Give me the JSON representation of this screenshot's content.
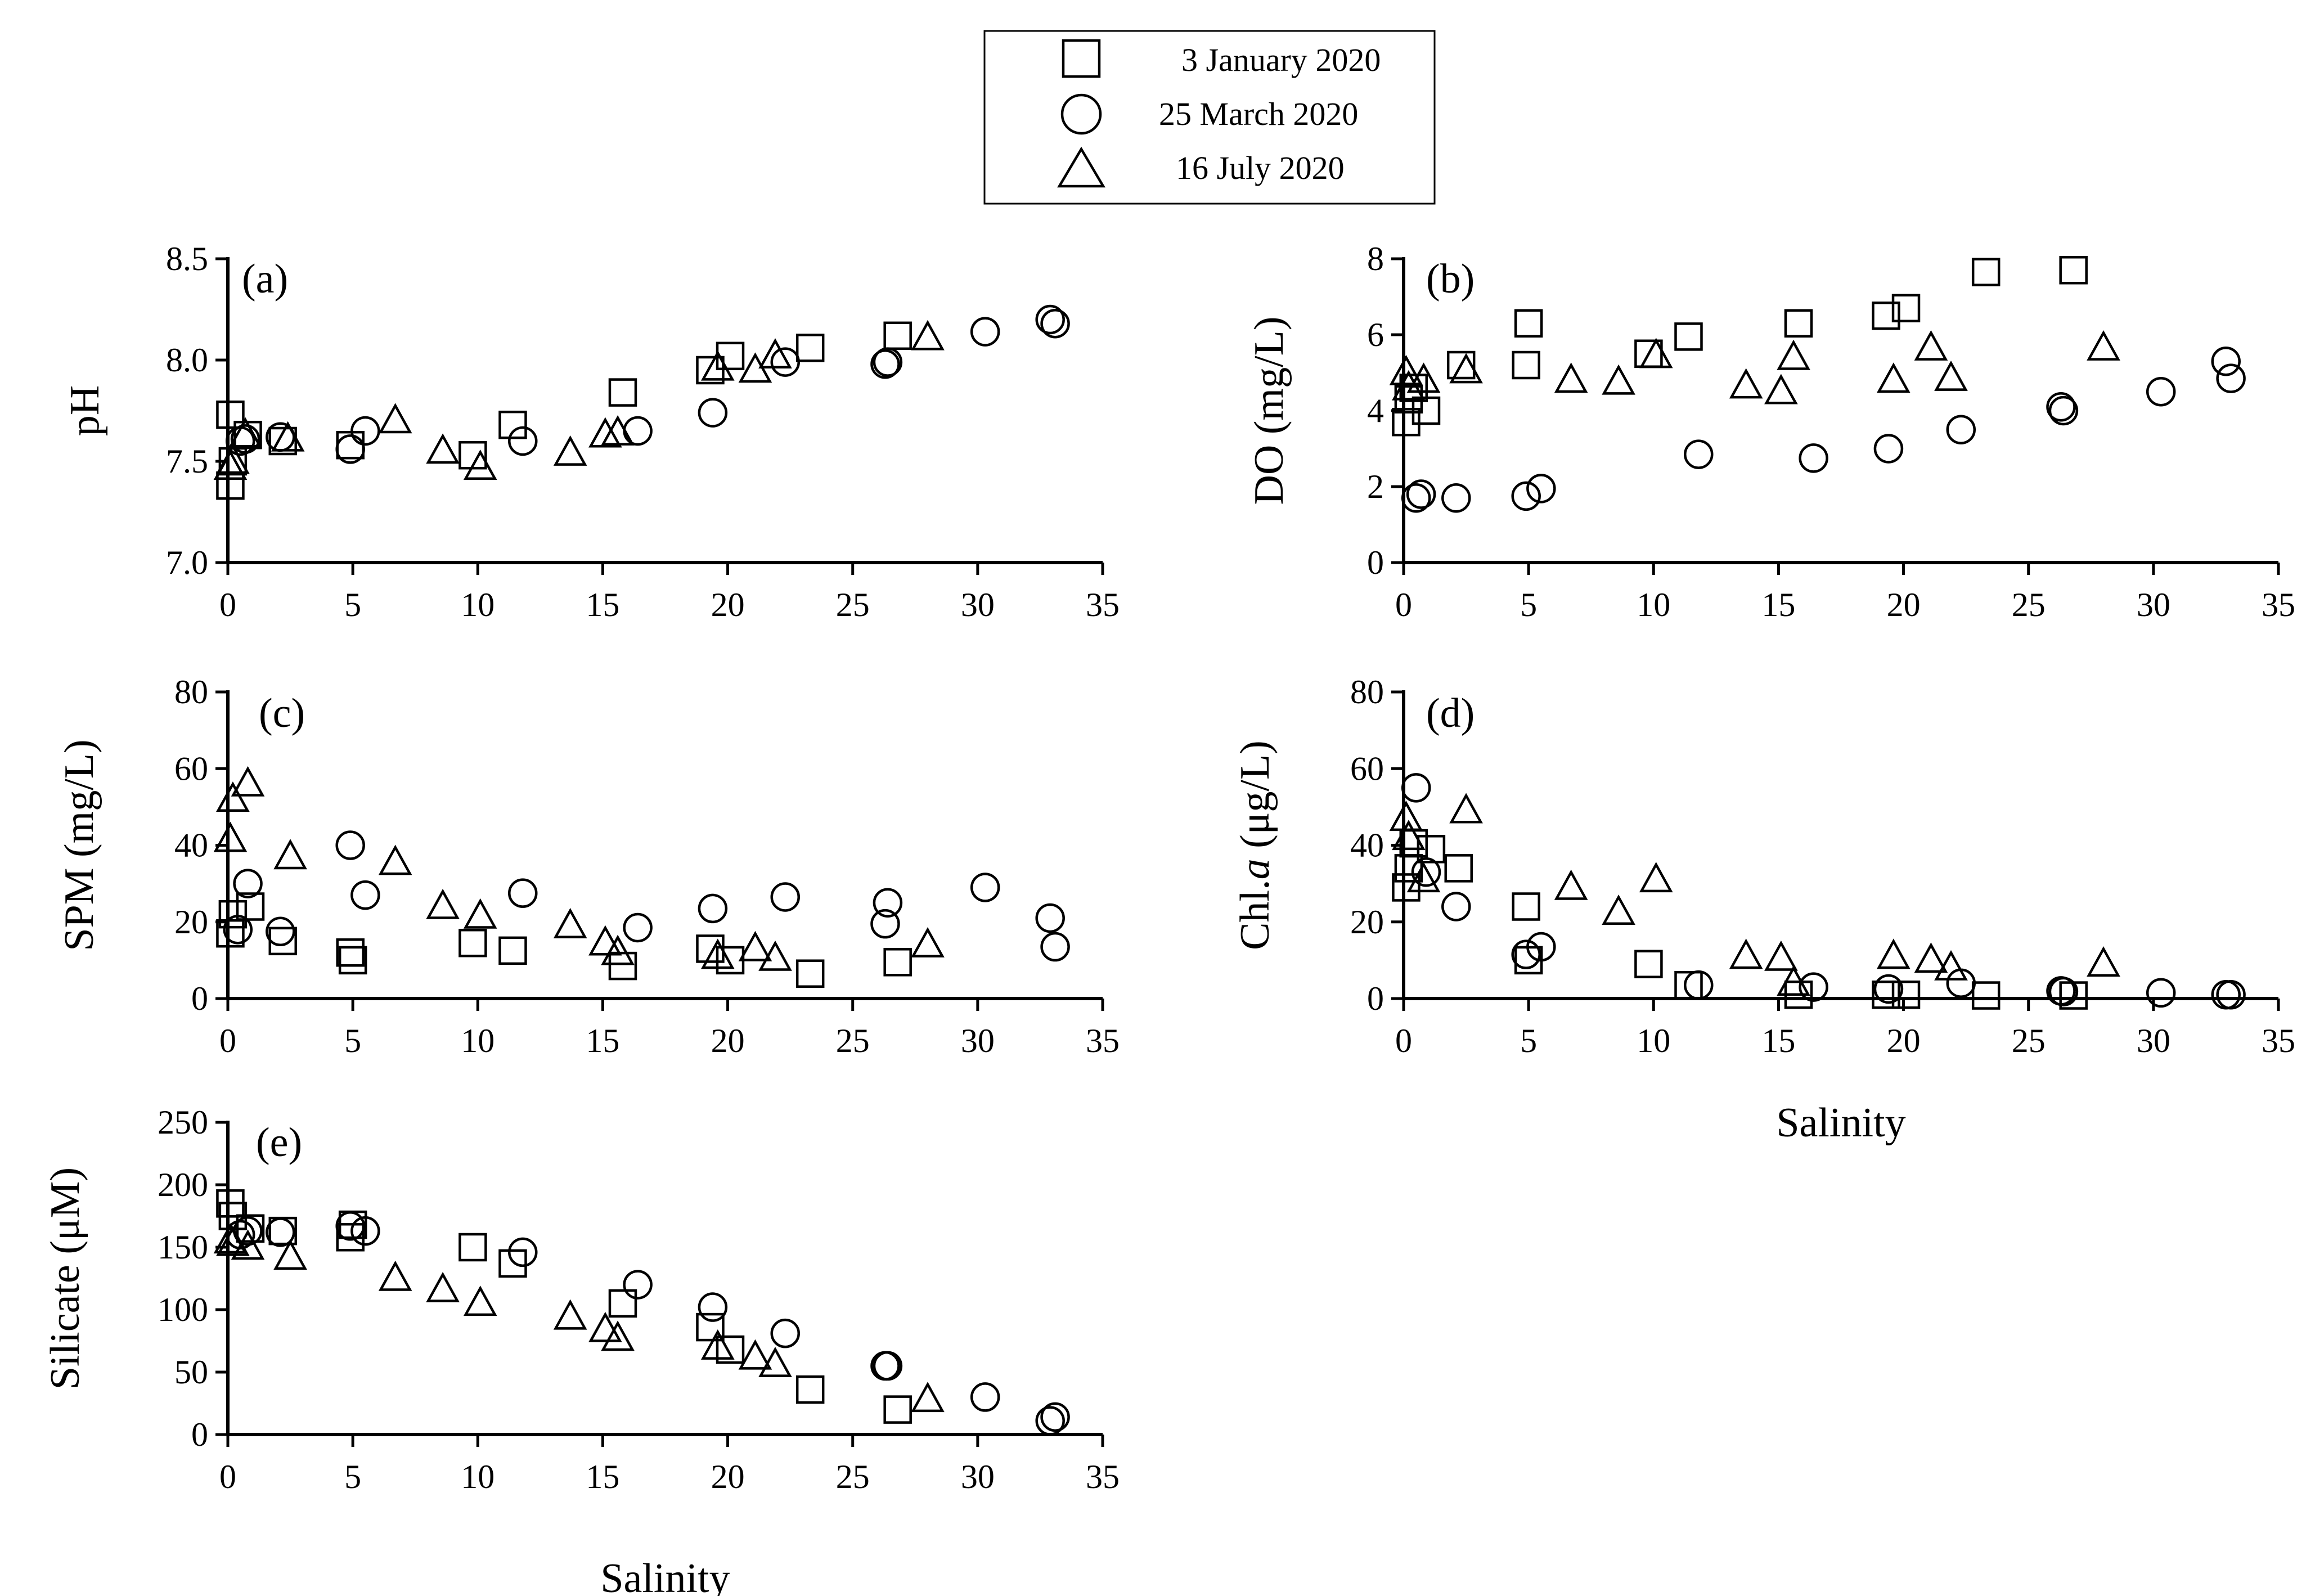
{
  "legend": {
    "entries": [
      {
        "label": "3 January 2020",
        "marker": "square"
      },
      {
        "label": "25 March 2020",
        "marker": "circle"
      },
      {
        "label": "16 July 2020",
        "marker": "triangle"
      }
    ]
  },
  "colors": {
    "ink": "#000000",
    "background": "#ffffff"
  },
  "chart_data": [
    {
      "type": "scatter",
      "id": "a",
      "tag": "(a)",
      "ylabel": "pH",
      "xlabel": "",
      "xlim": [
        0,
        35
      ],
      "ylim": [
        7.0,
        8.5
      ],
      "xticks": [
        0,
        5,
        10,
        15,
        20,
        25,
        30,
        35
      ],
      "yticks": [
        7.0,
        7.5,
        8.0,
        8.5
      ],
      "ytick_labels": [
        "7.0",
        "7.5",
        "8.0",
        "8.5"
      ],
      "series": [
        {
          "name": "3 January 2020",
          "marker": "square",
          "points": [
            [
              0.1,
              7.73
            ],
            [
              0.1,
              7.38
            ],
            [
              0.2,
              7.5
            ],
            [
              0.8,
              7.63
            ],
            [
              2.2,
              7.6
            ],
            [
              4.9,
              7.58
            ],
            [
              9.8,
              7.53
            ],
            [
              11.4,
              7.68
            ],
            [
              15.8,
              7.84
            ],
            [
              19.3,
              7.95
            ],
            [
              20.1,
              8.02
            ],
            [
              23.3,
              8.06
            ],
            [
              26.8,
              8.12
            ]
          ]
        },
        {
          "name": "25 March 2020",
          "marker": "circle",
          "points": [
            [
              0.5,
              7.6
            ],
            [
              0.7,
              7.61
            ],
            [
              2.1,
              7.62
            ],
            [
              4.9,
              7.56
            ],
            [
              5.5,
              7.65
            ],
            [
              11.8,
              7.6
            ],
            [
              16.4,
              7.65
            ],
            [
              19.4,
              7.74
            ],
            [
              22.3,
              7.99
            ],
            [
              26.3,
              7.98
            ],
            [
              26.4,
              7.99
            ],
            [
              30.3,
              8.14
            ],
            [
              32.9,
              8.2
            ],
            [
              33.1,
              8.18
            ]
          ]
        },
        {
          "name": "16 July 2020",
          "marker": "triangle",
          "points": [
            [
              0.1,
              7.47
            ],
            [
              0.2,
              7.5
            ],
            [
              0.7,
              7.63
            ],
            [
              2.4,
              7.61
            ],
            [
              6.7,
              7.7
            ],
            [
              8.6,
              7.55
            ],
            [
              10.1,
              7.47
            ],
            [
              13.7,
              7.54
            ],
            [
              15.1,
              7.63
            ],
            [
              15.6,
              7.64
            ],
            [
              19.6,
              7.96
            ],
            [
              21.1,
              7.95
            ],
            [
              21.9,
              8.02
            ],
            [
              28.0,
              8.11
            ]
          ]
        }
      ]
    },
    {
      "type": "scatter",
      "id": "b",
      "tag": "(b)",
      "ylabel": "DO (mg/L)",
      "xlabel": "",
      "xlim": [
        0,
        35
      ],
      "ylim": [
        0,
        8
      ],
      "xticks": [
        0,
        5,
        10,
        15,
        20,
        25,
        30,
        35
      ],
      "yticks": [
        0,
        2,
        4,
        6,
        8
      ],
      "ytick_labels": [
        "0",
        "2",
        "4",
        "6",
        "8"
      ],
      "series": [
        {
          "name": "3 January 2020",
          "marker": "square",
          "points": [
            [
              0.1,
              3.7
            ],
            [
              0.2,
              4.3
            ],
            [
              0.4,
              4.6
            ],
            [
              0.9,
              4.0
            ],
            [
              2.3,
              5.2
            ],
            [
              4.9,
              5.2
            ],
            [
              5.0,
              6.3
            ],
            [
              9.8,
              5.5
            ],
            [
              11.4,
              5.95
            ],
            [
              15.8,
              6.3
            ],
            [
              19.3,
              6.5
            ],
            [
              20.1,
              6.7
            ],
            [
              23.3,
              7.65
            ],
            [
              26.8,
              7.7
            ]
          ]
        },
        {
          "name": "25 March 2020",
          "marker": "circle",
          "points": [
            [
              0.5,
              1.7
            ],
            [
              0.7,
              1.8
            ],
            [
              2.1,
              1.7
            ],
            [
              4.9,
              1.75
            ],
            [
              5.5,
              1.95
            ],
            [
              11.8,
              2.85
            ],
            [
              16.4,
              2.75
            ],
            [
              19.4,
              3.0
            ],
            [
              22.3,
              3.5
            ],
            [
              26.3,
              4.1
            ],
            [
              26.4,
              4.0
            ],
            [
              30.3,
              4.5
            ],
            [
              32.9,
              5.3
            ],
            [
              33.1,
              4.85
            ]
          ]
        },
        {
          "name": "16 July 2020",
          "marker": "triangle",
          "points": [
            [
              0.1,
              5.0
            ],
            [
              0.2,
              4.6
            ],
            [
              0.8,
              4.8
            ],
            [
              2.5,
              5.05
            ],
            [
              6.7,
              4.8
            ],
            [
              8.6,
              4.75
            ],
            [
              10.1,
              5.45
            ],
            [
              13.7,
              4.65
            ],
            [
              15.1,
              4.5
            ],
            [
              15.6,
              5.4
            ],
            [
              19.6,
              4.8
            ],
            [
              21.1,
              5.65
            ],
            [
              21.9,
              4.85
            ],
            [
              28.0,
              5.65
            ]
          ]
        }
      ]
    },
    {
      "type": "scatter",
      "id": "c",
      "tag": "(c)",
      "ylabel": "SPM (mg/L)",
      "xlabel": "",
      "xlim": [
        0,
        35
      ],
      "ylim": [
        0,
        80
      ],
      "xticks": [
        0,
        5,
        10,
        15,
        20,
        25,
        30,
        35
      ],
      "yticks": [
        0,
        20,
        40,
        60,
        80
      ],
      "ytick_labels": [
        "0",
        "20",
        "40",
        "60",
        "80"
      ],
      "series": [
        {
          "name": "3 January 2020",
          "marker": "square",
          "points": [
            [
              0.1,
              17
            ],
            [
              0.2,
              22
            ],
            [
              0.9,
              24
            ],
            [
              2.2,
              15
            ],
            [
              4.9,
              12
            ],
            [
              5.0,
              10
            ],
            [
              9.8,
              14.5
            ],
            [
              11.4,
              12.5
            ],
            [
              15.8,
              8.5
            ],
            [
              19.3,
              13
            ],
            [
              20.1,
              10
            ],
            [
              23.3,
              6.5
            ],
            [
              26.8,
              9.5
            ]
          ]
        },
        {
          "name": "25 March 2020",
          "marker": "circle",
          "points": [
            [
              0.4,
              18
            ],
            [
              0.8,
              30
            ],
            [
              2.1,
              17.5
            ],
            [
              4.9,
              40
            ],
            [
              5.5,
              27
            ],
            [
              11.8,
              27.5
            ],
            [
              16.4,
              18.5
            ],
            [
              19.4,
              23.5
            ],
            [
              22.3,
              26.5
            ],
            [
              26.3,
              19.5
            ],
            [
              26.4,
              25
            ],
            [
              30.3,
              29
            ],
            [
              32.9,
              21
            ],
            [
              33.1,
              13.5
            ]
          ]
        },
        {
          "name": "16 July 2020",
          "marker": "triangle",
          "points": [
            [
              0.1,
              41.5
            ],
            [
              0.2,
              52
            ],
            [
              0.8,
              56
            ],
            [
              2.5,
              37
            ],
            [
              6.7,
              35.5
            ],
            [
              8.6,
              24
            ],
            [
              10.1,
              21.5
            ],
            [
              13.7,
              19
            ],
            [
              15.1,
              14.5
            ],
            [
              15.6,
              12
            ],
            [
              19.6,
              11
            ],
            [
              21.1,
              13
            ],
            [
              21.9,
              10.5
            ],
            [
              28.0,
              14
            ]
          ]
        }
      ]
    },
    {
      "type": "scatter",
      "id": "d",
      "tag": "(d)",
      "ylabel": "Chl.a (μg/L)",
      "ylabel_prefix": "Chl.",
      "ylabel_italic": "a",
      "ylabel_suffix": " (μg/L)",
      "xlabel": "Salinity",
      "xlim": [
        0,
        35
      ],
      "ylim": [
        0,
        80
      ],
      "xticks": [
        0,
        5,
        10,
        15,
        20,
        25,
        30,
        35
      ],
      "yticks": [
        0,
        20,
        40,
        60,
        80
      ],
      "ytick_labels": [
        "0",
        "20",
        "40",
        "60",
        "80"
      ],
      "series": [
        {
          "name": "3 January 2020",
          "marker": "square",
          "points": [
            [
              0.1,
              29
            ],
            [
              0.2,
              34
            ],
            [
              0.4,
              40.5
            ],
            [
              1.1,
              39
            ],
            [
              2.2,
              34
            ],
            [
              4.9,
              24
            ],
            [
              5.0,
              10
            ],
            [
              9.8,
              9
            ],
            [
              11.4,
              3.5
            ],
            [
              15.8,
              1
            ],
            [
              19.3,
              1
            ],
            [
              20.1,
              1
            ],
            [
              23.3,
              0.8
            ],
            [
              26.8,
              0.8
            ]
          ]
        },
        {
          "name": "25 March 2020",
          "marker": "circle",
          "points": [
            [
              0.5,
              55
            ],
            [
              0.9,
              33
            ],
            [
              2.1,
              24
            ],
            [
              4.9,
              11.5
            ],
            [
              5.5,
              13.5
            ],
            [
              11.8,
              3.5
            ],
            [
              16.4,
              3
            ],
            [
              19.4,
              2.5
            ],
            [
              22.3,
              4
            ],
            [
              26.3,
              2
            ],
            [
              26.4,
              1.8
            ],
            [
              30.3,
              1.5
            ],
            [
              32.9,
              1
            ],
            [
              33.1,
              1
            ]
          ]
        },
        {
          "name": "16 July 2020",
          "marker": "triangle",
          "points": [
            [
              0.1,
              47
            ],
            [
              0.2,
              42
            ],
            [
              0.8,
              31
            ],
            [
              2.5,
              49
            ],
            [
              6.7,
              29
            ],
            [
              8.6,
              22.5
            ],
            [
              10.1,
              31
            ],
            [
              13.7,
              11
            ],
            [
              15.1,
              10.5
            ],
            [
              15.6,
              4
            ],
            [
              19.6,
              11
            ],
            [
              21.1,
              10
            ],
            [
              21.9,
              8
            ],
            [
              28.0,
              9
            ]
          ]
        }
      ]
    },
    {
      "type": "scatter",
      "id": "e",
      "tag": "(e)",
      "ylabel": "Silicate (μM)",
      "xlabel": "Salinity",
      "xlim": [
        0,
        35
      ],
      "ylim": [
        0,
        250
      ],
      "xticks": [
        0,
        5,
        10,
        15,
        20,
        25,
        30,
        35
      ],
      "yticks": [
        0,
        50,
        100,
        150,
        200,
        250
      ],
      "ytick_labels": [
        "0",
        "50",
        "100",
        "150",
        "200",
        "250"
      ],
      "series": [
        {
          "name": "3 January 2020",
          "marker": "square",
          "points": [
            [
              0.1,
              185
            ],
            [
              0.2,
              175
            ],
            [
              0.9,
              165
            ],
            [
              2.2,
              163
            ],
            [
              4.9,
              158
            ],
            [
              5.0,
              168
            ],
            [
              9.8,
              150
            ],
            [
              11.4,
              137
            ],
            [
              15.8,
              105
            ],
            [
              19.3,
              86
            ],
            [
              20.1,
              68
            ],
            [
              23.3,
              36
            ],
            [
              26.8,
              20
            ]
          ]
        },
        {
          "name": "25 March 2020",
          "marker": "circle",
          "points": [
            [
              0.5,
              160
            ],
            [
              0.8,
              163
            ],
            [
              2.1,
              162
            ],
            [
              4.9,
              167
            ],
            [
              5.5,
              163
            ],
            [
              11.8,
              146
            ],
            [
              16.4,
              120
            ],
            [
              19.4,
              102
            ],
            [
              22.3,
              81
            ],
            [
              26.3,
              55
            ],
            [
              26.4,
              55
            ],
            [
              30.3,
              30
            ],
            [
              32.9,
              11
            ],
            [
              33.1,
              14
            ]
          ]
        },
        {
          "name": "16 July 2020",
          "marker": "triangle",
          "points": [
            [
              0.1,
              155
            ],
            [
              0.2,
              153
            ],
            [
              0.8,
              150
            ],
            [
              2.5,
              142
            ],
            [
              6.7,
              125
            ],
            [
              8.6,
              116
            ],
            [
              10.1,
              105
            ],
            [
              13.7,
              94
            ],
            [
              15.1,
              84
            ],
            [
              15.6,
              77
            ],
            [
              19.6,
              70
            ],
            [
              21.1,
              62
            ],
            [
              21.9,
              56
            ],
            [
              28.0,
              28
            ]
          ]
        }
      ]
    }
  ]
}
